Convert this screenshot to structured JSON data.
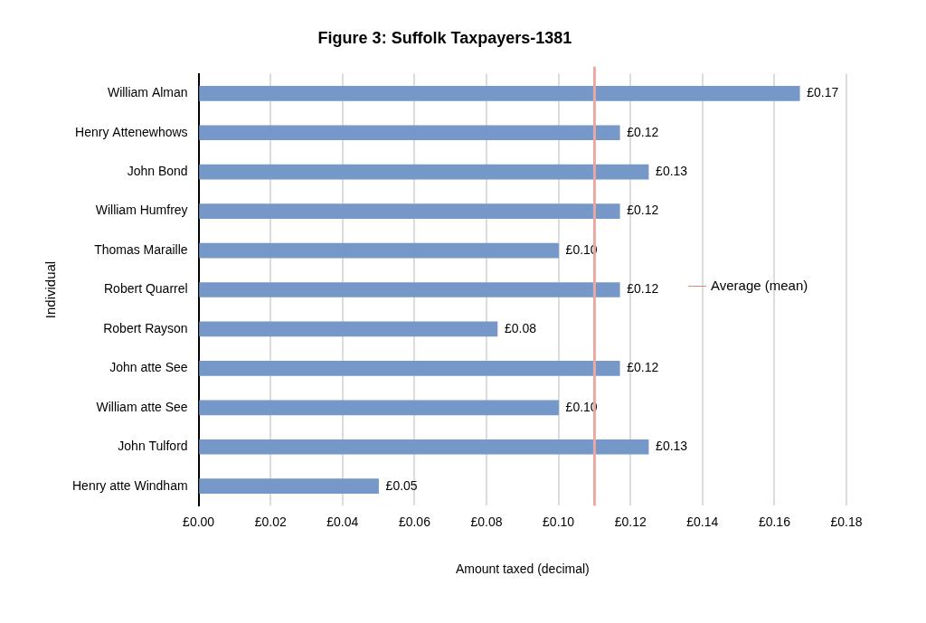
{
  "chart_data": {
    "type": "bar",
    "orientation": "horizontal",
    "title": "Figure 3: Suffolk Taxpayers-1381",
    "x_label": "Amount taxed (decimal)",
    "y_label": "Individual",
    "categories": [
      "William Alman",
      "Henry Attenewhows",
      "John Bond",
      "William Humfrey",
      "Thomas Maraille",
      "Robert Quarrel",
      "Robert Rayson",
      "John atte See",
      "William atte See",
      "John Tulford",
      "Henry atte Windham"
    ],
    "values": [
      0.167,
      0.117,
      0.125,
      0.117,
      0.1,
      0.117,
      0.083,
      0.117,
      0.1,
      0.125,
      0.05
    ],
    "value_labels": [
      "£0.17",
      "£0.12",
      "£0.13",
      "£0.12",
      "£0.10",
      "£0.12",
      "£0.08",
      "£0.12",
      "£0.10",
      "£0.13",
      "£0.05"
    ],
    "color": "#7598c9",
    "data_labels": true,
    "xlim": [
      0,
      0.18
    ],
    "xticks": [
      {
        "value": 0,
        "label": "£0.00"
      },
      {
        "value": 0.02,
        "label": "£0.02"
      },
      {
        "value": 0.04,
        "label": "£0.04"
      },
      {
        "value": 0.06,
        "label": "£0.06"
      },
      {
        "value": 0.08,
        "label": "£0.08"
      },
      {
        "value": 0.1,
        "label": "£0.10"
      },
      {
        "value": 0.12,
        "label": "£0.12"
      },
      {
        "value": 0.14,
        "label": "£0.14"
      },
      {
        "value": 0.16,
        "label": "£0.16"
      },
      {
        "value": 0.18,
        "label": "£0.18"
      }
    ],
    "grid": true,
    "legend": "right",
    "mean_line": {
      "name": "Average (mean)",
      "value": 0.11,
      "color": "#e9a9a3"
    }
  }
}
